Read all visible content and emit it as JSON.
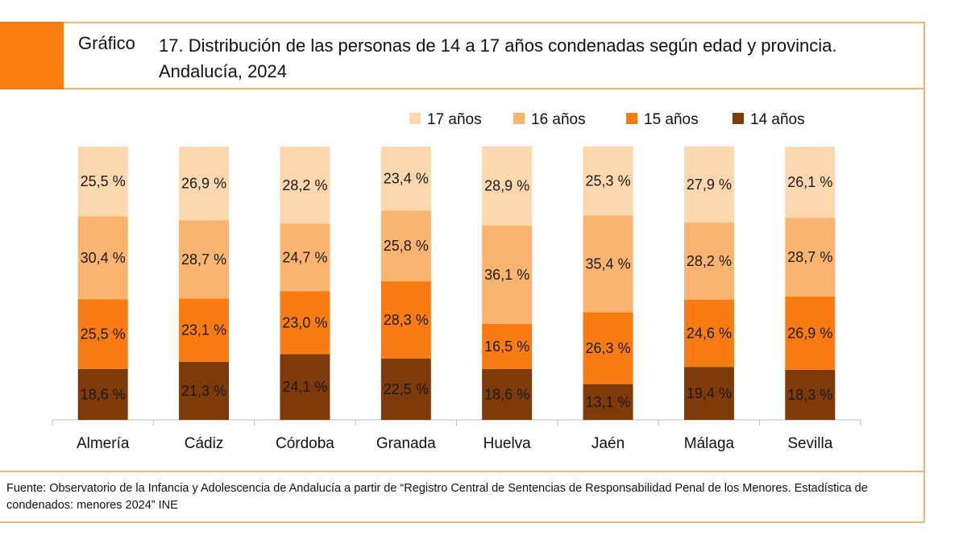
{
  "header": {
    "prefix": "Gráfico",
    "title": "17. Distribución de las personas de 14 a 17 años condenadas según edad y provincia. Andalucía, 2024"
  },
  "footer": {
    "source": "Fuente: Observatorio de la Infancia y Adolescencia de Andalucía a partir de “Registro Central de Sentencias de Responsabilidad Penal de los Menores. Estadística de condenados: menores 2024” INE"
  },
  "chart_data": {
    "type": "bar",
    "stacked": true,
    "title": "17. Distribución de las personas de 14 a 17 años condenadas según edad y provincia. Andalucía, 2024",
    "categories": [
      "Almería",
      "Cádiz",
      "Córdoba",
      "Granada",
      "Huelva",
      "Jaén",
      "Málaga",
      "Sevilla"
    ],
    "series": [
      {
        "name": "14 años",
        "color": "#7f3a0a",
        "values": [
          18.6,
          21.3,
          24.1,
          22.5,
          18.6,
          13.1,
          19.4,
          18.3
        ]
      },
      {
        "name": "15 años",
        "color": "#f97b14",
        "values": [
          25.5,
          23.1,
          23.0,
          28.3,
          16.5,
          26.3,
          24.6,
          26.9
        ]
      },
      {
        "name": "16 años",
        "color": "#fbb370",
        "values": [
          30.4,
          28.7,
          24.7,
          25.8,
          36.1,
          35.4,
          28.2,
          28.7
        ]
      },
      {
        "name": "17 años",
        "color": "#fdd7ae",
        "values": [
          25.5,
          26.9,
          28.2,
          23.4,
          28.9,
          25.3,
          27.9,
          26.1
        ]
      }
    ],
    "legend_order": [
      "17 años",
      "16 años",
      "15 años",
      "14 años"
    ],
    "legend_position": "top-right",
    "label_format": "{v} %",
    "ylim": [
      0,
      100
    ],
    "grid": false
  }
}
